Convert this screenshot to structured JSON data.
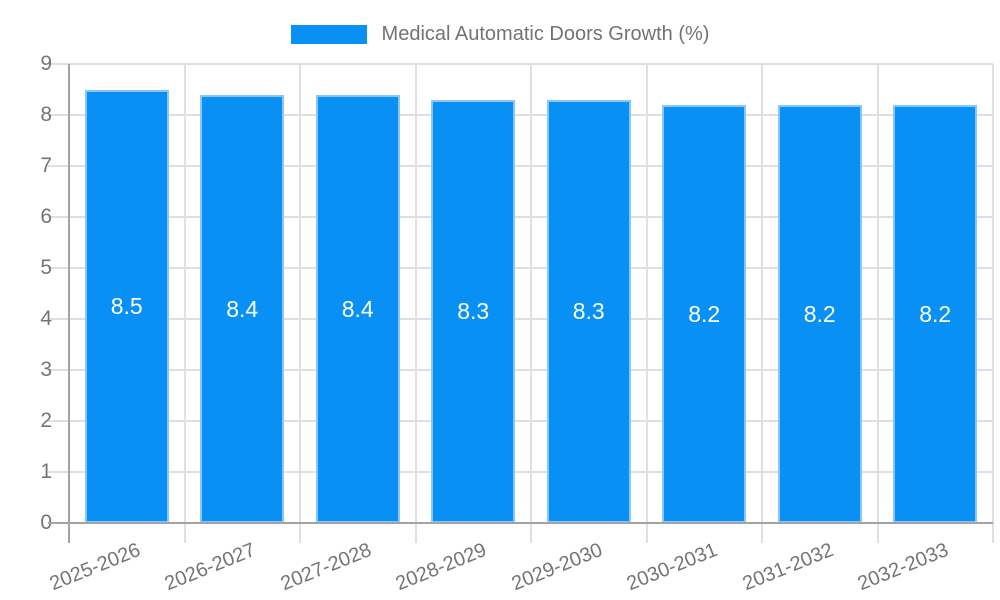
{
  "chart_data": {
    "type": "bar",
    "title": "Medical Automatic Doors Growth (%)",
    "series_name": "Medical Automatic Doors Growth (%)",
    "categories": [
      "2025-2026",
      "2026-2027",
      "2027-2028",
      "2028-2029",
      "2029-2030",
      "2030-2031",
      "2031-2032",
      "2032-2033"
    ],
    "values": [
      8.5,
      8.4,
      8.4,
      8.3,
      8.3,
      8.2,
      8.2,
      8.2
    ],
    "xlabel": "",
    "ylabel": "",
    "ylim": [
      0,
      9
    ],
    "ytick_step": 1,
    "yticks": [
      "0",
      "1",
      "2",
      "3",
      "4",
      "5",
      "6",
      "7",
      "8",
      "9"
    ],
    "grid": true,
    "legend_position": "top",
    "bar_color": "#0990f5",
    "bar_border_color": "#8ac6f9",
    "value_label_color": "#ffffff",
    "grid_color": "#e0e0e0",
    "axis_color": "#a3a3a3",
    "text_color": "#757575"
  }
}
